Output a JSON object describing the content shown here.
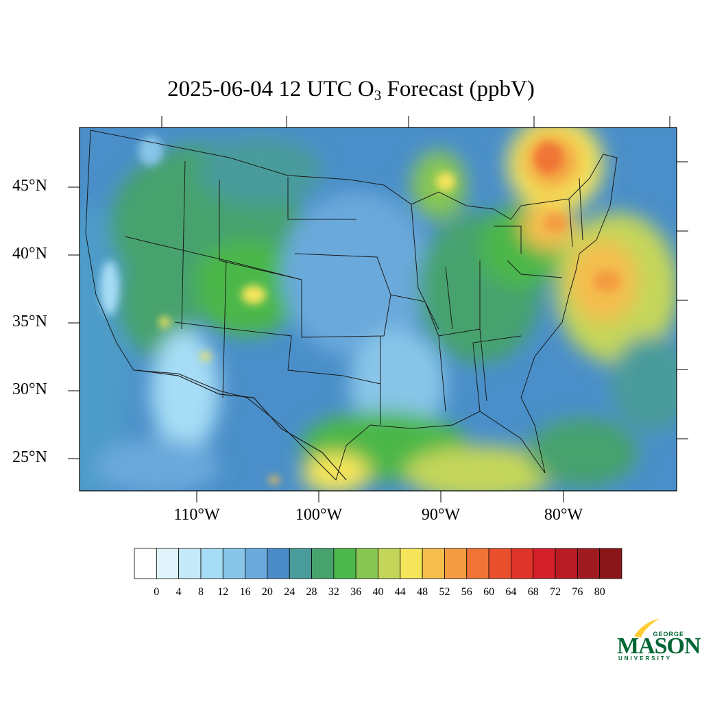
{
  "title": {
    "prefix": "2025-06-04 12 UTC O",
    "subscript": "3",
    "suffix": " Forecast (ppbV)"
  },
  "map": {
    "projection": "lat-lon",
    "lon_range": [
      -119,
      -70.5
    ],
    "lat_range": [
      22.5,
      49.5
    ],
    "lat_labels": [
      "45°N",
      "40°N",
      "35°N",
      "30°N",
      "25°N"
    ],
    "lat_values": [
      45,
      40,
      35,
      30,
      25
    ],
    "lon_labels": [
      "110°W",
      "100°W",
      "90°W",
      "80°W"
    ],
    "lon_values": [
      -110,
      -100,
      -90,
      -80
    ]
  },
  "colorbar": {
    "colors": [
      "#ffffff",
      "#e1f3fb",
      "#c4e9f7",
      "#a6dcf5",
      "#88c5e8",
      "#6aa9dc",
      "#4b8cc8",
      "#4a9b9b",
      "#47a26e",
      "#4cb74a",
      "#88c653",
      "#c4d65a",
      "#f4e55a",
      "#f4bd4d",
      "#f39b40",
      "#f07435",
      "#e8502d",
      "#de3429",
      "#d32029",
      "#b91c24",
      "#a01b1f",
      "#8a161a"
    ],
    "labels": [
      "0",
      "4",
      "8",
      "12",
      "16",
      "20",
      "24",
      "28",
      "32",
      "36",
      "40",
      "44",
      "48",
      "52",
      "56",
      "60",
      "64",
      "68",
      "72",
      "76",
      "80"
    ]
  },
  "logo": {
    "george": "GEORGE",
    "mason": "MASON",
    "university": "UNIVERSITY",
    "brand_green": "#006633",
    "brand_gold": "#ffcc33"
  }
}
